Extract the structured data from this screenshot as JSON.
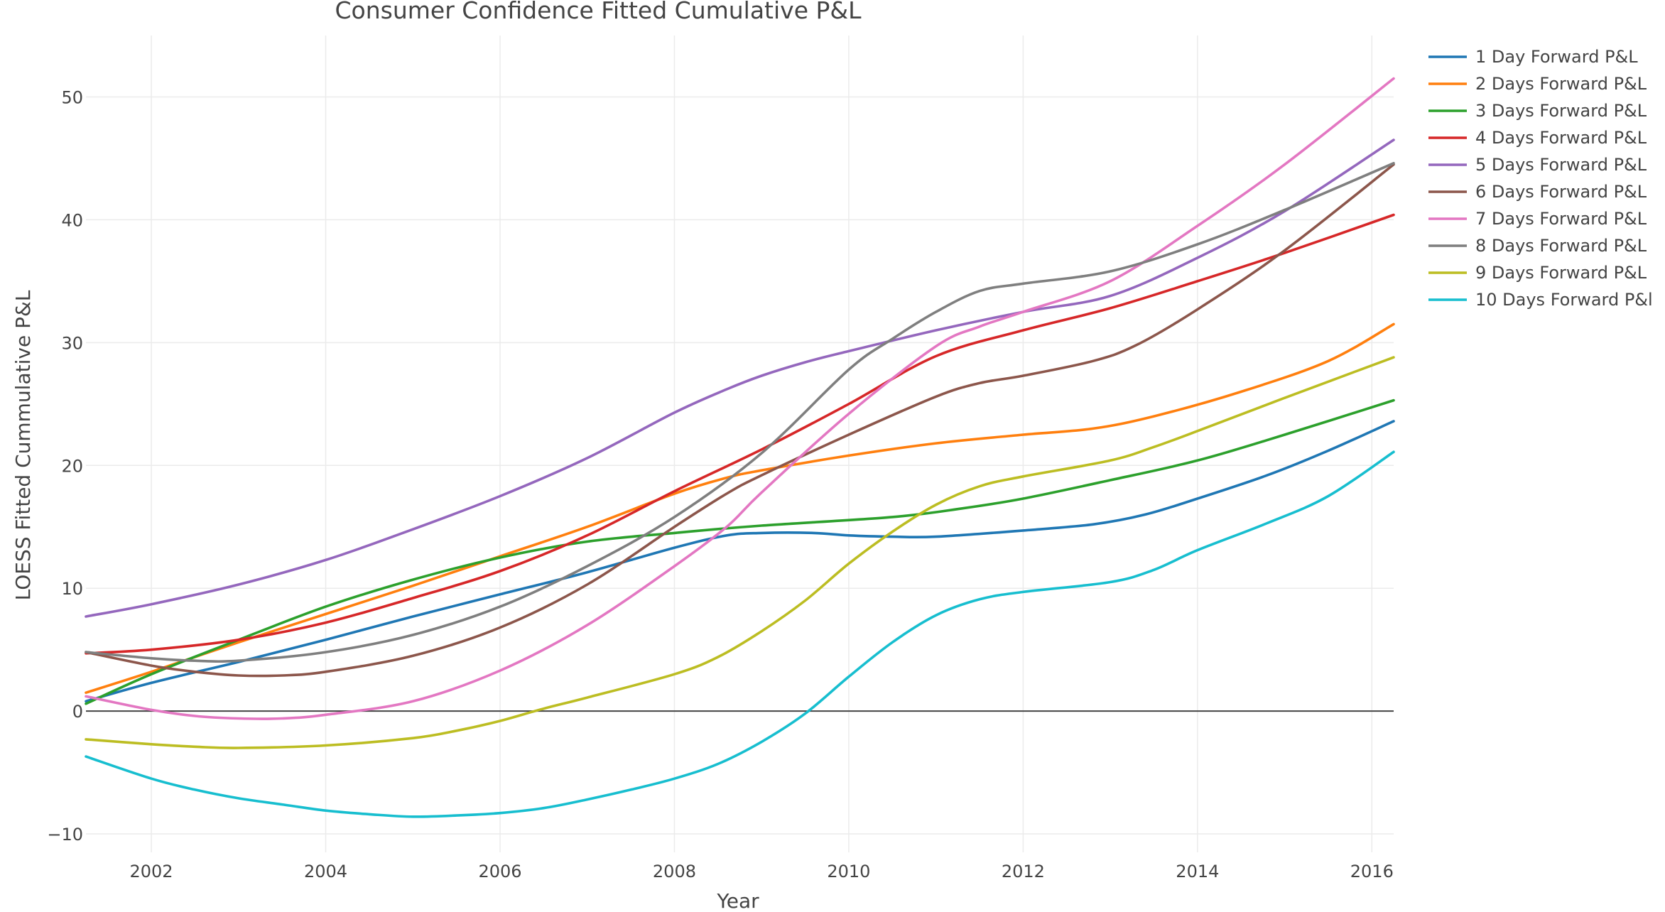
{
  "chart_data": {
    "type": "line",
    "title": "Consumer Confidence Fitted Cumulative P&L",
    "xlabel": "Year",
    "ylabel": "LOESS Fitted Cummulative P&L",
    "xlim": [
      2001.25,
      2016.25
    ],
    "ylim": [
      -11.5,
      55
    ],
    "xticks": [
      2002,
      2004,
      2006,
      2008,
      2010,
      2012,
      2014,
      2016
    ],
    "xtick_labels": [
      "2002",
      "2004",
      "2006",
      "2008",
      "2010",
      "2012",
      "2014",
      "2016"
    ],
    "yticks": [
      -10,
      0,
      10,
      20,
      30,
      40,
      50
    ],
    "ytick_labels": [
      "−10",
      "0",
      "10",
      "20",
      "30",
      "40",
      "50"
    ],
    "grid": true,
    "legend_position": "right",
    "series": [
      {
        "name": "1 Day Forward P&L",
        "color": "#1f77b4",
        "points": [
          [
            2001.25,
            0.8
          ],
          [
            2002,
            2.3
          ],
          [
            2003,
            4.0
          ],
          [
            2004,
            5.8
          ],
          [
            2005,
            7.7
          ],
          [
            2006,
            9.5
          ],
          [
            2007,
            11.3
          ],
          [
            2008,
            13.3
          ],
          [
            2008.6,
            14.3
          ],
          [
            2009,
            14.5
          ],
          [
            2009.6,
            14.5
          ],
          [
            2010,
            14.3
          ],
          [
            2010.5,
            14.2
          ],
          [
            2011,
            14.2
          ],
          [
            2012,
            14.7
          ],
          [
            2012.8,
            15.2
          ],
          [
            2013.4,
            16.0
          ],
          [
            2014,
            17.3
          ],
          [
            2014.8,
            19.2
          ],
          [
            2015.5,
            21.2
          ],
          [
            2016.25,
            23.6
          ]
        ]
      },
      {
        "name": "2 Days Forward P&L",
        "color": "#ff7f0e",
        "points": [
          [
            2001.25,
            1.5
          ],
          [
            2002,
            3.2
          ],
          [
            2003,
            5.6
          ],
          [
            2004,
            7.9
          ],
          [
            2005,
            10.2
          ],
          [
            2006,
            12.6
          ],
          [
            2007,
            15.0
          ],
          [
            2008,
            17.7
          ],
          [
            2008.6,
            19.0
          ],
          [
            2009,
            19.6
          ],
          [
            2010,
            20.8
          ],
          [
            2011,
            21.8
          ],
          [
            2012,
            22.5
          ],
          [
            2012.8,
            23.0
          ],
          [
            2013.5,
            24.0
          ],
          [
            2014.5,
            26.0
          ],
          [
            2015.5,
            28.5
          ],
          [
            2016.25,
            31.5
          ]
        ]
      },
      {
        "name": "3 Days Forward P&L",
        "color": "#2ca02c",
        "points": [
          [
            2001.25,
            0.6
          ],
          [
            2002,
            3.0
          ],
          [
            2003,
            5.8
          ],
          [
            2004,
            8.5
          ],
          [
            2005,
            10.7
          ],
          [
            2006,
            12.5
          ],
          [
            2007,
            13.8
          ],
          [
            2008,
            14.5
          ],
          [
            2009,
            15.1
          ],
          [
            2010.5,
            15.8
          ],
          [
            2011.3,
            16.5
          ],
          [
            2012,
            17.3
          ],
          [
            2013,
            18.8
          ],
          [
            2014,
            20.4
          ],
          [
            2015,
            22.5
          ],
          [
            2016.25,
            25.3
          ]
        ]
      },
      {
        "name": "4 Days Forward P&L",
        "color": "#d62728",
        "points": [
          [
            2001.25,
            4.7
          ],
          [
            2002,
            5.0
          ],
          [
            2003,
            5.8
          ],
          [
            2004,
            7.2
          ],
          [
            2005,
            9.2
          ],
          [
            2006,
            11.4
          ],
          [
            2007,
            14.3
          ],
          [
            2008,
            17.9
          ],
          [
            2009,
            21.3
          ],
          [
            2010,
            25.0
          ],
          [
            2011,
            28.9
          ],
          [
            2012,
            31.0
          ],
          [
            2013,
            32.8
          ],
          [
            2014,
            35.0
          ],
          [
            2015,
            37.3
          ],
          [
            2016.25,
            40.4
          ]
        ]
      },
      {
        "name": "5 Days Forward P&L",
        "color": "#9467bd",
        "points": [
          [
            2001.25,
            7.7
          ],
          [
            2002,
            8.7
          ],
          [
            2003,
            10.3
          ],
          [
            2004,
            12.3
          ],
          [
            2005,
            14.8
          ],
          [
            2006,
            17.5
          ],
          [
            2007,
            20.6
          ],
          [
            2008,
            24.3
          ],
          [
            2008.6,
            26.2
          ],
          [
            2009,
            27.3
          ],
          [
            2009.5,
            28.4
          ],
          [
            2010,
            29.3
          ],
          [
            2011,
            31.0
          ],
          [
            2012,
            32.5
          ],
          [
            2013,
            33.8
          ],
          [
            2014,
            36.9
          ],
          [
            2015,
            40.7
          ],
          [
            2016.25,
            46.5
          ]
        ]
      },
      {
        "name": "6 Days Forward P&L",
        "color": "#8c564b",
        "points": [
          [
            2001.25,
            4.8
          ],
          [
            2002,
            3.7
          ],
          [
            2002.5,
            3.2
          ],
          [
            2003,
            2.9
          ],
          [
            2003.5,
            2.9
          ],
          [
            2004,
            3.2
          ],
          [
            2005,
            4.5
          ],
          [
            2006,
            6.8
          ],
          [
            2007,
            10.3
          ],
          [
            2008,
            15.0
          ],
          [
            2008.6,
            17.7
          ],
          [
            2009,
            19.2
          ],
          [
            2010,
            22.5
          ],
          [
            2011,
            25.6
          ],
          [
            2011.5,
            26.7
          ],
          [
            2012,
            27.3
          ],
          [
            2012.8,
            28.5
          ],
          [
            2013.3,
            29.8
          ],
          [
            2014,
            32.7
          ],
          [
            2015,
            37.5
          ],
          [
            2016.25,
            44.5
          ]
        ]
      },
      {
        "name": "7 Days Forward P&L",
        "color": "#e377c2",
        "points": [
          [
            2001.25,
            1.2
          ],
          [
            2002,
            0.1
          ],
          [
            2002.5,
            -0.4
          ],
          [
            2003,
            -0.6
          ],
          [
            2003.5,
            -0.6
          ],
          [
            2004,
            -0.3
          ],
          [
            2005,
            0.8
          ],
          [
            2006,
            3.3
          ],
          [
            2007,
            7.0
          ],
          [
            2008,
            11.8
          ],
          [
            2008.6,
            15.0
          ],
          [
            2009,
            17.8
          ],
          [
            2010,
            24.2
          ],
          [
            2011,
            29.7
          ],
          [
            2011.5,
            31.3
          ],
          [
            2012,
            32.5
          ],
          [
            2013,
            35.0
          ],
          [
            2014,
            39.5
          ],
          [
            2015,
            44.5
          ],
          [
            2016.25,
            51.5
          ]
        ]
      },
      {
        "name": "8 Days Forward P&L",
        "color": "#7f7f7f",
        "points": [
          [
            2001.25,
            4.8
          ],
          [
            2002,
            4.3
          ],
          [
            2002.5,
            4.1
          ],
          [
            2003,
            4.1
          ],
          [
            2004,
            4.8
          ],
          [
            2005,
            6.2
          ],
          [
            2006,
            8.5
          ],
          [
            2007,
            11.8
          ],
          [
            2008,
            15.8
          ],
          [
            2009,
            21.0
          ],
          [
            2010,
            27.8
          ],
          [
            2010.5,
            30.3
          ],
          [
            2011,
            32.5
          ],
          [
            2011.5,
            34.2
          ],
          [
            2012,
            34.8
          ],
          [
            2013,
            35.8
          ],
          [
            2014,
            38.0
          ],
          [
            2015,
            40.8
          ],
          [
            2016.25,
            44.6
          ]
        ]
      },
      {
        "name": "9 Days Forward P&L",
        "color": "#bcbd22",
        "points": [
          [
            2001.25,
            -2.3
          ],
          [
            2002,
            -2.7
          ],
          [
            2002.5,
            -2.9
          ],
          [
            2003,
            -3.0
          ],
          [
            2004,
            -2.8
          ],
          [
            2005,
            -2.2
          ],
          [
            2005.5,
            -1.6
          ],
          [
            2006,
            -0.8
          ],
          [
            2006.5,
            0.2
          ],
          [
            2007,
            1.1
          ],
          [
            2008,
            3.0
          ],
          [
            2008.5,
            4.4
          ],
          [
            2009,
            6.5
          ],
          [
            2009.5,
            9.0
          ],
          [
            2010,
            12.0
          ],
          [
            2010.5,
            14.6
          ],
          [
            2011,
            16.8
          ],
          [
            2011.5,
            18.3
          ],
          [
            2012,
            19.1
          ],
          [
            2013,
            20.4
          ],
          [
            2013.5,
            21.5
          ],
          [
            2014,
            22.8
          ],
          [
            2015,
            25.5
          ],
          [
            2016.25,
            28.8
          ]
        ]
      },
      {
        "name": "10 Days Forward P&l",
        "color": "#17becf",
        "points": [
          [
            2001.25,
            -3.7
          ],
          [
            2002,
            -5.5
          ],
          [
            2002.5,
            -6.4
          ],
          [
            2003,
            -7.1
          ],
          [
            2003.5,
            -7.6
          ],
          [
            2004,
            -8.1
          ],
          [
            2004.5,
            -8.4
          ],
          [
            2005,
            -8.6
          ],
          [
            2005.5,
            -8.5
          ],
          [
            2006,
            -8.3
          ],
          [
            2006.5,
            -7.9
          ],
          [
            2007,
            -7.2
          ],
          [
            2007.5,
            -6.4
          ],
          [
            2008,
            -5.5
          ],
          [
            2008.5,
            -4.3
          ],
          [
            2009,
            -2.5
          ],
          [
            2009.5,
            -0.2
          ],
          [
            2010,
            2.8
          ],
          [
            2010.5,
            5.6
          ],
          [
            2011,
            7.8
          ],
          [
            2011.5,
            9.1
          ],
          [
            2012,
            9.7
          ],
          [
            2013,
            10.5
          ],
          [
            2013.5,
            11.5
          ],
          [
            2014,
            13.1
          ],
          [
            2014.8,
            15.3
          ],
          [
            2015.5,
            17.5
          ],
          [
            2016.25,
            21.1
          ]
        ]
      }
    ]
  }
}
